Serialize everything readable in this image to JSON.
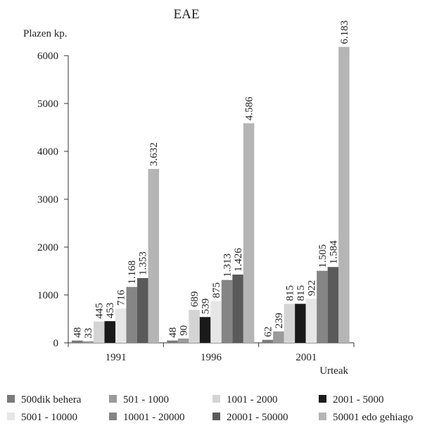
{
  "chart_data": {
    "type": "bar",
    "title": "EAE",
    "ylabel": "Plazen kp.",
    "xlabel": "Urteak",
    "ylim": [
      0,
      6000
    ],
    "yticks": [
      0,
      1000,
      2000,
      3000,
      4000,
      5000,
      6000
    ],
    "categories": [
      "1991",
      "1996",
      "2001"
    ],
    "series": [
      {
        "name": "500dik behera",
        "color": "#7a7a7a",
        "values": [
          48,
          48,
          62
        ],
        "labels": [
          "48",
          "48",
          "62"
        ]
      },
      {
        "name": "501 - 1000",
        "color": "#9a9a9a",
        "values": [
          33,
          90,
          239
        ],
        "labels": [
          "33",
          "90",
          "239"
        ]
      },
      {
        "name": "1001 - 2000",
        "color": "#d4d4d4",
        "values": [
          445,
          689,
          815
        ],
        "labels": [
          "445",
          "689",
          "815"
        ]
      },
      {
        "name": "2001 - 5000",
        "color": "#1a1a1a",
        "values": [
          453,
          539,
          815
        ],
        "labels": [
          "453",
          "539",
          "815"
        ]
      },
      {
        "name": "5001 - 10000",
        "color": "#e6e6e6",
        "values": [
          716,
          875,
          922
        ],
        "labels": [
          "716",
          "875",
          "922"
        ]
      },
      {
        "name": "10001 - 20000",
        "color": "#858585",
        "values": [
          1168,
          1313,
          1505
        ],
        "labels": [
          "1.168",
          "1.313",
          "1.505"
        ]
      },
      {
        "name": "20001 - 50000",
        "color": "#5a5a5a",
        "values": [
          1353,
          1426,
          1584
        ],
        "labels": [
          "1.353",
          "1.426",
          "1.584"
        ]
      },
      {
        "name": "50001 edo gehiago",
        "color": "#b5b5b5",
        "values": [
          3632,
          4586,
          6183
        ],
        "labels": [
          "3.632",
          "4.586",
          "6.183"
        ]
      }
    ],
    "grid": false,
    "legend_position": "bottom"
  }
}
